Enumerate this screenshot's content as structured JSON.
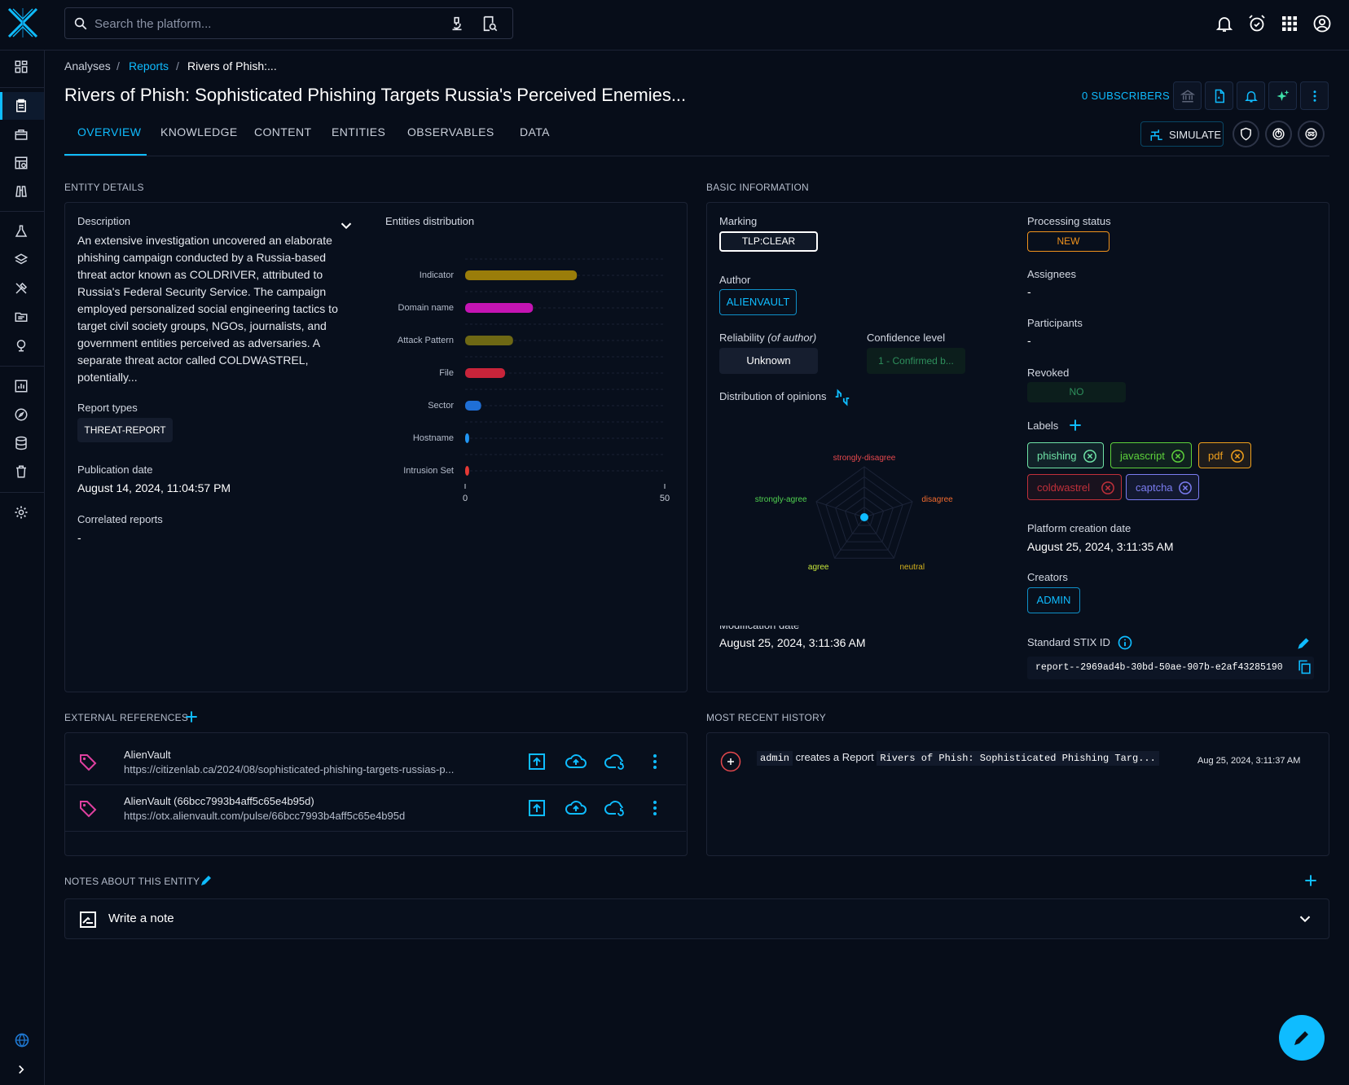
{
  "search": {
    "placeholder": "Search the platform..."
  },
  "breadcrumb": {
    "items": [
      "Analyses",
      "Reports",
      "Rivers of Phish:..."
    ],
    "separator": "/"
  },
  "title": "Rivers of Phish: Sophisticated Phishing Targets Russia's Perceived Enemies...",
  "subscribers": "0 SUBSCRIBERS",
  "tabs": [
    "OVERVIEW",
    "KNOWLEDGE",
    "CONTENT",
    "ENTITIES",
    "OBSERVABLES",
    "DATA"
  ],
  "simulate_label": "SIMULATE",
  "entity_details": {
    "heading": "ENTITY DETAILS",
    "description_label": "Description",
    "description": "An extensive investigation uncovered an elaborate phishing campaign conducted by a Russia-based threat actor known as COLDRIVER, attributed to Russia's Federal Security Service. The campaign employed personalized social engineering tactics to target civil society groups, NGOs, journalists, and government entities perceived as adversaries. A separate threat actor called COLDWASTREL, potentially...",
    "report_types_label": "Report types",
    "report_type": "THREAT-REPORT",
    "publication_date_label": "Publication date",
    "publication_date": "August 14, 2024, 11:04:57 PM",
    "correlated_reports_label": "Correlated reports",
    "correlated_reports": "-",
    "distribution_label": "Entities distribution"
  },
  "chart_data": {
    "type": "bar",
    "orientation": "horizontal",
    "categories": [
      "Indicator",
      "Domain name",
      "Attack Pattern",
      "File",
      "Sector",
      "Hostname",
      "Intrusion Set"
    ],
    "values": [
      28,
      17,
      12,
      10,
      4,
      1,
      1
    ],
    "colors": [
      "#9a7d0a",
      "#c414b3",
      "#6e6814",
      "#c8243a",
      "#1f6fd6",
      "#2196f3",
      "#e53935"
    ],
    "xlim": [
      0,
      50
    ],
    "xticks": [
      0,
      50
    ]
  },
  "basic_info": {
    "heading": "BASIC INFORMATION",
    "marking_label": "Marking",
    "marking": "TLP:CLEAR",
    "processing_status_label": "Processing status",
    "processing_status": "NEW",
    "author_label": "Author",
    "author": "ALIENVAULT",
    "assignees_label": "Assignees",
    "assignees": "-",
    "participants_label": "Participants",
    "participants": "-",
    "reliability_label": "Reliability",
    "reliability_note": "(of author)",
    "reliability": "Unknown",
    "confidence_label": "Confidence level",
    "confidence": "1 - Confirmed b...",
    "revoked_label": "Revoked",
    "revoked": "NO",
    "opinions_label": "Distribution of opinions",
    "opinion_axes": [
      "strongly-disagree",
      "disagree",
      "neutral",
      "agree",
      "strongly-agree"
    ],
    "opinion_colors": [
      "#e5484d",
      "#f06a2e",
      "#d4b21c",
      "#c6e63a",
      "#4fd14f"
    ],
    "labels_label": "Labels",
    "labels": [
      {
        "name": "phishing",
        "color": "#6fe3a6"
      },
      {
        "name": "javascript",
        "color": "#5dd13b"
      },
      {
        "name": "pdf",
        "color": "#f0a01c"
      },
      {
        "name": "coldwastrel",
        "color": "#c0303a"
      },
      {
        "name": "captcha",
        "color": "#7b7cf0"
      }
    ],
    "platform_creation_label": "Platform creation date",
    "platform_creation": "August 25, 2024, 3:11:35 AM",
    "creators_label": "Creators",
    "creator": "ADMIN",
    "modification_label": "Modification date",
    "modification": "August 25, 2024, 3:11:36 AM",
    "stix_label": "Standard STIX ID",
    "stix_id": "report--2969ad4b-30bd-50ae-907b-e2af43285190"
  },
  "external_references": {
    "heading": "EXTERNAL REFERENCES",
    "items": [
      {
        "title": "AlienVault",
        "url": "https://citizenlab.ca/2024/08/sophisticated-phishing-targets-russias-p..."
      },
      {
        "title": "AlienVault (66bcc7993b4aff5c65e4b95d)",
        "url": "https://otx.alienvault.com/pulse/66bcc7993b4aff5c65e4b95d"
      }
    ]
  },
  "history": {
    "heading": "MOST RECENT HISTORY",
    "user": "admin",
    "action": "creates a Report",
    "entity": "Rivers of Phish: Sophisticated Phishing Targ...",
    "timestamp": "Aug 25, 2024, 3:11:37 AM"
  },
  "notes": {
    "heading": "NOTES ABOUT THIS ENTITY",
    "write_note": "Write a note"
  },
  "colors": {
    "accent": "#0fbcff",
    "background": "#070d19",
    "panel": "#080f1c",
    "border": "#1c2335"
  }
}
